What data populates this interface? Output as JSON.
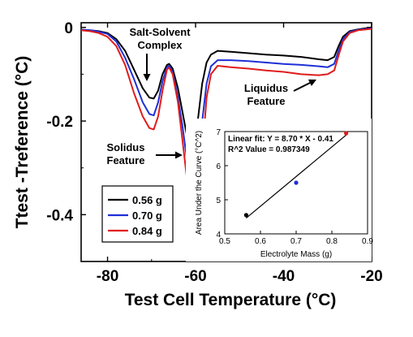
{
  "chart_data": [
    {
      "type": "line",
      "xlabel": "Test Cell Temperature (°C)",
      "ylabel": "Ttest -Treference (°C)",
      "xlim": [
        -86,
        -20
      ],
      "ylim": [
        -0.5,
        0.01
      ],
      "x_ticks": [
        "-80",
        "-60",
        "-40",
        "-20"
      ],
      "y_ticks": [
        "0",
        "-0.2",
        "-0.4"
      ],
      "legend_position": "bottom-left",
      "series": [
        {
          "name": "0.56 g",
          "color": "#000000",
          "points": [
            [
              -86,
              -0.005
            ],
            [
              -84,
              -0.006
            ],
            [
              -82,
              -0.008
            ],
            [
              -80,
              -0.012
            ],
            [
              -78,
              -0.025
            ],
            [
              -76,
              -0.05
            ],
            [
              -74,
              -0.09
            ],
            [
              -72,
              -0.13
            ],
            [
              -70.5,
              -0.15
            ],
            [
              -69.5,
              -0.152
            ],
            [
              -68.5,
              -0.135
            ],
            [
              -67.5,
              -0.1
            ],
            [
              -66.5,
              -0.08
            ],
            [
              -66,
              -0.078
            ],
            [
              -65.2,
              -0.088
            ],
            [
              -64,
              -0.13
            ],
            [
              -63,
              -0.18
            ],
            [
              -62,
              -0.23
            ],
            [
              -61.2,
              -0.265
            ],
            [
              -60.7,
              -0.277
            ],
            [
              -60.2,
              -0.255
            ],
            [
              -59.5,
              -0.2
            ],
            [
              -58.5,
              -0.12
            ],
            [
              -57.5,
              -0.075
            ],
            [
              -56.5,
              -0.058
            ],
            [
              -55,
              -0.05
            ],
            [
              -52,
              -0.052
            ],
            [
              -48,
              -0.055
            ],
            [
              -44,
              -0.058
            ],
            [
              -40,
              -0.06
            ],
            [
              -36,
              -0.063
            ],
            [
              -32,
              -0.068
            ],
            [
              -30,
              -0.07
            ],
            [
              -28.5,
              -0.063
            ],
            [
              -27.5,
              -0.04
            ],
            [
              -26.5,
              -0.02
            ],
            [
              -25,
              -0.008
            ],
            [
              -23,
              -0.004
            ],
            [
              -20,
              0.0
            ]
          ]
        },
        {
          "name": "0.70 g",
          "color": "#1f2fd6",
          "points": [
            [
              -86,
              -0.005
            ],
            [
              -84,
              -0.006
            ],
            [
              -82,
              -0.009
            ],
            [
              -80,
              -0.014
            ],
            [
              -78,
              -0.03
            ],
            [
              -76,
              -0.065
            ],
            [
              -74,
              -0.11
            ],
            [
              -72,
              -0.16
            ],
            [
              -70.5,
              -0.185
            ],
            [
              -69.5,
              -0.188
            ],
            [
              -68.5,
              -0.16
            ],
            [
              -67.5,
              -0.115
            ],
            [
              -66.5,
              -0.085
            ],
            [
              -66,
              -0.082
            ],
            [
              -65.2,
              -0.095
            ],
            [
              -64,
              -0.15
            ],
            [
              -63,
              -0.21
            ],
            [
              -62,
              -0.28
            ],
            [
              -61,
              -0.34
            ],
            [
              -60.3,
              -0.38
            ],
            [
              -59.8,
              -0.36
            ],
            [
              -59.3,
              -0.3
            ],
            [
              -58.5,
              -0.2
            ],
            [
              -57.5,
              -0.12
            ],
            [
              -56.5,
              -0.083
            ],
            [
              -55,
              -0.07
            ],
            [
              -52,
              -0.07
            ],
            [
              -48,
              -0.072
            ],
            [
              -44,
              -0.075
            ],
            [
              -40,
              -0.078
            ],
            [
              -36,
              -0.08
            ],
            [
              -32,
              -0.083
            ],
            [
              -30,
              -0.085
            ],
            [
              -28.5,
              -0.078
            ],
            [
              -27.5,
              -0.05
            ],
            [
              -26.5,
              -0.025
            ],
            [
              -25,
              -0.01
            ],
            [
              -23,
              -0.005
            ],
            [
              -20,
              -0.002
            ]
          ]
        },
        {
          "name": "0.84 g",
          "color": "#e01b1b",
          "points": [
            [
              -86,
              -0.006
            ],
            [
              -84,
              -0.008
            ],
            [
              -82,
              -0.012
            ],
            [
              -80,
              -0.02
            ],
            [
              -78,
              -0.04
            ],
            [
              -76,
              -0.08
            ],
            [
              -74,
              -0.14
            ],
            [
              -72,
              -0.19
            ],
            [
              -70.5,
              -0.215
            ],
            [
              -69.5,
              -0.218
            ],
            [
              -68.5,
              -0.19
            ],
            [
              -67.5,
              -0.135
            ],
            [
              -66.5,
              -0.09
            ],
            [
              -66,
              -0.086
            ],
            [
              -65.2,
              -0.1
            ],
            [
              -64,
              -0.16
            ],
            [
              -63,
              -0.24
            ],
            [
              -62,
              -0.32
            ],
            [
              -61,
              -0.4
            ],
            [
              -60,
              -0.455
            ],
            [
              -59.6,
              -0.46
            ],
            [
              -59.2,
              -0.4
            ],
            [
              -58.5,
              -0.27
            ],
            [
              -57.5,
              -0.15
            ],
            [
              -56.5,
              -0.1
            ],
            [
              -55,
              -0.082
            ],
            [
              -52,
              -0.085
            ],
            [
              -48,
              -0.088
            ],
            [
              -44,
              -0.092
            ],
            [
              -40,
              -0.095
            ],
            [
              -36,
              -0.1
            ],
            [
              -32,
              -0.102
            ],
            [
              -30,
              -0.1
            ],
            [
              -28.5,
              -0.092
            ],
            [
              -27.5,
              -0.06
            ],
            [
              -26.5,
              -0.03
            ],
            [
              -25,
              -0.012
            ],
            [
              -23,
              -0.006
            ],
            [
              -20,
              -0.003
            ]
          ]
        }
      ],
      "annotations": [
        {
          "lines": [
            "Salt-Solvent",
            "Complex"
          ],
          "arrow": "down"
        },
        {
          "lines": [
            "Solidus",
            "Feature"
          ],
          "arrow": "right"
        },
        {
          "lines": [
            "Liquidus",
            "Feature"
          ],
          "arrow": "up-right"
        }
      ]
    },
    {
      "type": "scatter",
      "xlabel": "Electrolyte Mass (g)",
      "ylabel": "Area Under the Curve (°C^2)",
      "xlim": [
        0.5,
        0.9
      ],
      "ylim": [
        4,
        7
      ],
      "x_ticks": [
        "0.5",
        "0.6",
        "0.7",
        "0.8",
        "0.9"
      ],
      "y_ticks": [
        "4",
        "5",
        "6",
        "7"
      ],
      "points": [
        {
          "x": 0.56,
          "y": 4.55,
          "color": "#000000"
        },
        {
          "x": 0.7,
          "y": 5.5,
          "color": "#1f2fd6"
        },
        {
          "x": 0.84,
          "y": 6.95,
          "color": "#e01b1b"
        }
      ],
      "fit": {
        "slope": 8.7,
        "intercept": -0.41,
        "x_range": [
          0.56,
          0.84
        ]
      },
      "fit_label": "Linear fit: Y = 8.70 * X - 0.41",
      "r2_label": "R^2 Value = 0.987349"
    }
  ]
}
